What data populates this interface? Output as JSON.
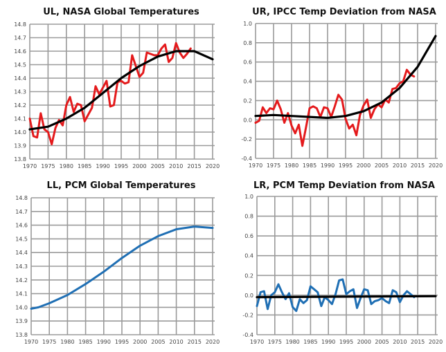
{
  "chart_data": [
    {
      "panel": "UL",
      "type": "line",
      "title": "UL, NASA Global Temperatures",
      "xlim": [
        1970,
        2020
      ],
      "ylim": [
        13.8,
        14.8
      ],
      "xticks": [
        "1970",
        "1975",
        "1980",
        "1985",
        "1990",
        "1995",
        "2000",
        "2005",
        "2010",
        "2015",
        "2020"
      ],
      "yticks": [
        "13.8",
        "13.9",
        "14.0",
        "14.1",
        "14.2",
        "14.3",
        "14.4",
        "14.5",
        "14.6",
        "14.7",
        "14.8"
      ],
      "grid": true,
      "series": [
        {
          "color": "#e41a1c",
          "x": [
            1970,
            1971,
            1972,
            1973,
            1974,
            1975,
            1976,
            1977,
            1978,
            1979,
            1980,
            1981,
            1982,
            1983,
            1984,
            1985,
            1986,
            1987,
            1988,
            1989,
            1990,
            1991,
            1992,
            1993,
            1994,
            1995,
            1996,
            1997,
            1998,
            1999,
            2000,
            2001,
            2002,
            2003,
            2004,
            2005,
            2006,
            2007,
            2008,
            2009,
            2010,
            2011,
            2012,
            2013,
            2014
          ],
          "y": [
            14.1,
            13.97,
            13.96,
            14.14,
            14.02,
            14.0,
            13.91,
            14.03,
            14.09,
            14.05,
            14.2,
            14.26,
            14.15,
            14.21,
            14.2,
            14.08,
            14.13,
            14.18,
            14.34,
            14.28,
            14.33,
            14.38,
            14.19,
            14.2,
            14.37,
            14.38,
            14.36,
            14.37,
            14.57,
            14.49,
            14.41,
            14.44,
            14.59,
            14.58,
            14.57,
            14.57,
            14.62,
            14.65,
            14.52,
            14.55,
            14.66,
            14.59,
            14.55,
            14.58,
            14.62
          ]
        },
        {
          "color": "#000000",
          "x": [
            1970,
            1975,
            1980,
            1985,
            1990,
            1995,
            2000,
            2005,
            2010,
            2015,
            2020
          ],
          "y": [
            14.02,
            14.04,
            14.1,
            14.18,
            14.29,
            14.4,
            14.49,
            14.56,
            14.6,
            14.6,
            14.54
          ]
        }
      ]
    },
    {
      "panel": "UR",
      "type": "line",
      "title": "UR, IPCC Temp Deviation from NASA",
      "xlim": [
        1970,
        2020
      ],
      "ylim": [
        -0.4,
        1.0
      ],
      "xticks": [
        "1970",
        "1975",
        "1980",
        "1985",
        "1990",
        "1995",
        "2000",
        "2005",
        "2010",
        "2015",
        "2020"
      ],
      "yticks": [
        "-0.4",
        "-0.2",
        "0.0",
        "0.2",
        "0.4",
        "0.6",
        "0.8",
        "1.0"
      ],
      "grid": true,
      "series": [
        {
          "color": "#e41a1c",
          "x": [
            1970,
            1971,
            1972,
            1973,
            1974,
            1975,
            1976,
            1977,
            1978,
            1979,
            1980,
            1981,
            1982,
            1983,
            1984,
            1985,
            1986,
            1987,
            1988,
            1989,
            1990,
            1991,
            1992,
            1993,
            1994,
            1995,
            1996,
            1997,
            1998,
            1999,
            2000,
            2001,
            2002,
            2003,
            2004,
            2005,
            2006,
            2007,
            2008,
            2009,
            2010,
            2011,
            2012,
            2013,
            2014
          ],
          "y": [
            -0.03,
            -0.01,
            0.13,
            0.07,
            0.12,
            0.11,
            0.2,
            0.11,
            -0.03,
            0.07,
            -0.06,
            -0.14,
            -0.05,
            -0.27,
            -0.08,
            0.12,
            0.14,
            0.12,
            0.03,
            0.13,
            0.12,
            0.03,
            0.14,
            0.26,
            0.21,
            0.01,
            -0.09,
            -0.05,
            -0.16,
            0.05,
            0.15,
            0.21,
            0.02,
            0.11,
            0.16,
            0.13,
            0.21,
            0.18,
            0.32,
            0.33,
            0.38,
            0.4,
            0.52,
            0.47,
            0.45
          ]
        },
        {
          "color": "#000000",
          "x": [
            1970,
            1975,
            1980,
            1985,
            1990,
            1995,
            2000,
            2005,
            2010,
            2015,
            2020
          ],
          "y": [
            0.04,
            0.05,
            0.04,
            0.03,
            0.02,
            0.04,
            0.09,
            0.18,
            0.33,
            0.55,
            0.87
          ]
        }
      ]
    },
    {
      "panel": "LL",
      "type": "line",
      "title": "LL, PCM Global Temperatures",
      "xlim": [
        1970,
        2020
      ],
      "ylim": [
        13.8,
        14.8
      ],
      "xticks": [
        "1970",
        "1975",
        "1980",
        "1985",
        "1990",
        "1995",
        "2000",
        "2005",
        "2010",
        "2015",
        "2020"
      ],
      "yticks": [
        "13.8",
        "13.9",
        "14.0",
        "14.1",
        "14.2",
        "14.3",
        "14.4",
        "14.5",
        "14.6",
        "14.7",
        "14.8"
      ],
      "grid": true,
      "series": [
        {
          "color": "#1f6fb4",
          "x": [
            1970,
            1972,
            1975,
            1980,
            1985,
            1990,
            1995,
            2000,
            2005,
            2010,
            2015,
            2020
          ],
          "y": [
            13.99,
            14.0,
            14.03,
            14.09,
            14.17,
            14.26,
            14.36,
            14.45,
            14.52,
            14.57,
            14.59,
            14.58
          ]
        }
      ]
    },
    {
      "panel": "LR",
      "type": "line",
      "title": "LR, PCM Temp Deviation from NASA",
      "xlim": [
        1970,
        2020
      ],
      "ylim": [
        -0.4,
        1.0
      ],
      "xticks": [
        "1970",
        "1975",
        "1980",
        "1985",
        "1990",
        "1995",
        "2000",
        "2005",
        "2010",
        "2015",
        "2020"
      ],
      "yticks": [
        "-0.4",
        "-0.2",
        "0.0",
        "0.2",
        "0.4",
        "0.6",
        "0.8",
        "1.0"
      ],
      "grid": true,
      "series": [
        {
          "color": "#1f6fb4",
          "x": [
            1970,
            1971,
            1972,
            1973,
            1974,
            1975,
            1976,
            1977,
            1978,
            1979,
            1980,
            1981,
            1982,
            1983,
            1984,
            1985,
            1986,
            1987,
            1988,
            1989,
            1990,
            1991,
            1992,
            1993,
            1994,
            1995,
            1996,
            1997,
            1998,
            1999,
            2000,
            2001,
            2002,
            2003,
            2004,
            2005,
            2006,
            2007,
            2008,
            2009,
            2010,
            2011,
            2012,
            2013,
            2014
          ],
          "y": [
            -0.11,
            0.03,
            0.04,
            -0.14,
            0.0,
            0.03,
            0.11,
            0.03,
            -0.04,
            0.02,
            -0.12,
            -0.16,
            -0.04,
            -0.08,
            -0.05,
            0.09,
            0.06,
            0.03,
            -0.11,
            -0.02,
            -0.05,
            -0.09,
            0.01,
            0.15,
            0.16,
            0.01,
            0.04,
            0.06,
            -0.13,
            -0.03,
            0.06,
            0.05,
            -0.09,
            -0.06,
            -0.05,
            -0.03,
            -0.06,
            -0.08,
            0.05,
            0.03,
            -0.07,
            0.0,
            0.04,
            0.01,
            -0.02
          ]
        },
        {
          "color": "#000000",
          "x": [
            1970,
            2020
          ],
          "y": [
            -0.02,
            -0.01
          ]
        }
      ]
    }
  ]
}
